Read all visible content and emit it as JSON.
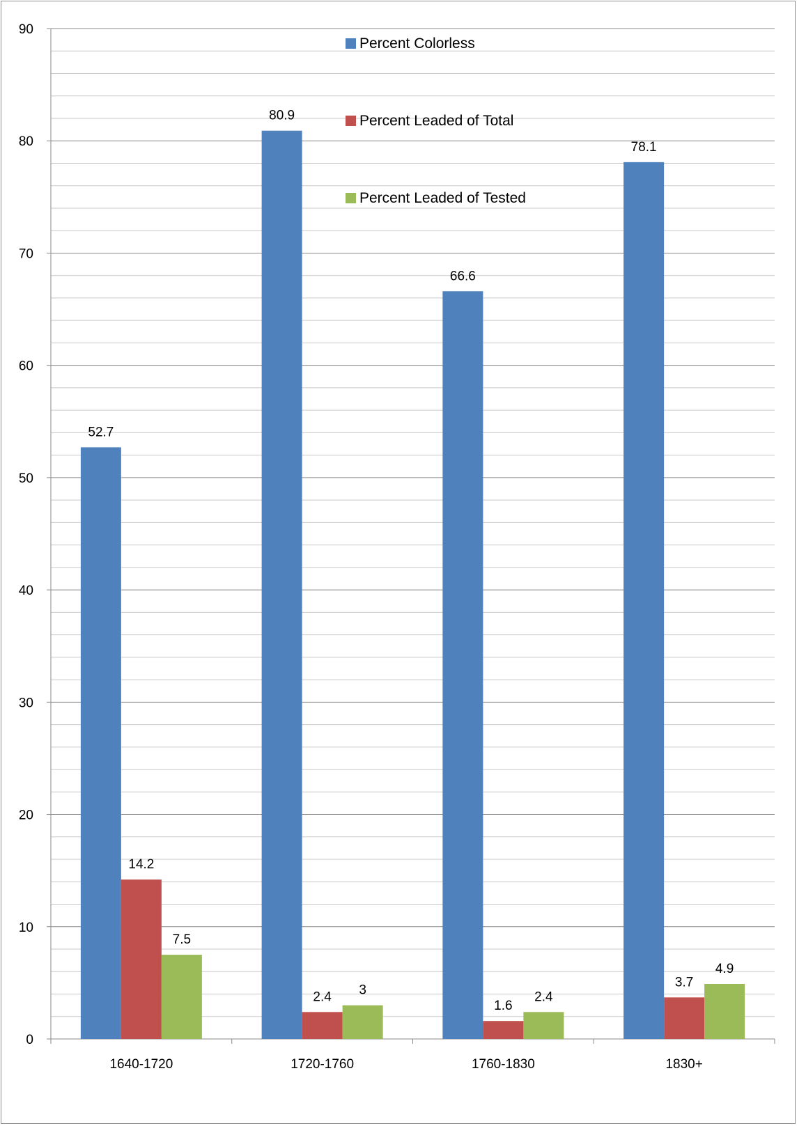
{
  "chart_data": {
    "type": "bar",
    "categories": [
      "1640-1720",
      "1720-1760",
      "1760-1830",
      "1830+"
    ],
    "series": [
      {
        "name": "Percent Colorless",
        "values": [
          52.7,
          80.9,
          66.6,
          78.1
        ],
        "color": "#4f81bd"
      },
      {
        "name": "Percent Leaded of Total",
        "values": [
          14.2,
          2.4,
          1.6,
          3.7
        ],
        "color": "#c0504d"
      },
      {
        "name": "Percent Leaded of Tested",
        "values": [
          7.5,
          3,
          2.4,
          4.9
        ],
        "color": "#9bbb59"
      }
    ],
    "ylim": [
      0,
      90
    ],
    "yticks": [
      0,
      10,
      20,
      30,
      40,
      50,
      60,
      70,
      80,
      90
    ],
    "minor_grid_step": 2,
    "grid": true,
    "legend_position": "top-center, stacked vertically inside plot",
    "show_data_labels": true
  }
}
